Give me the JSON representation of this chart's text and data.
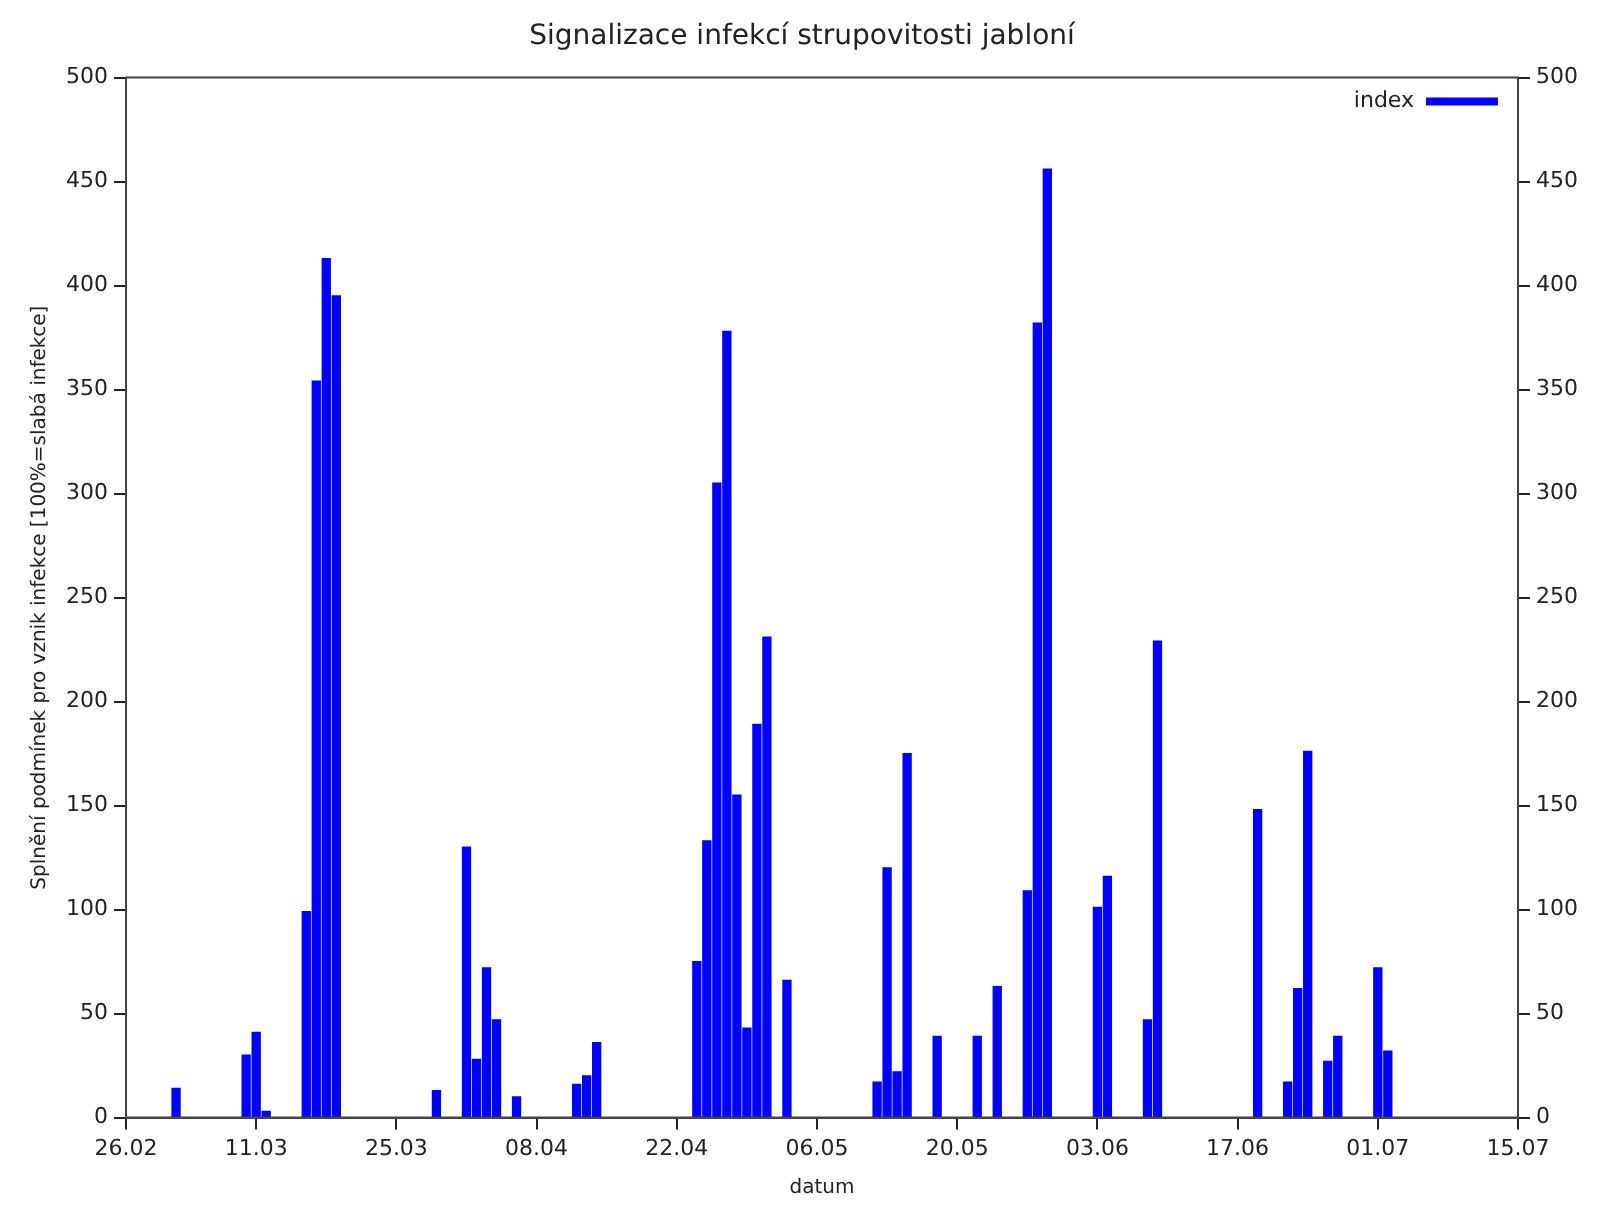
{
  "chart_data": {
    "type": "bar",
    "title": "Signalizace infekcí strupovitosti jabloní",
    "xlabel": "datum",
    "ylabel": "Splnění podmínek pro vznik infekce [100%=slabá infekce]",
    "x": [
      "--03-03",
      "--03-10",
      "--03-11",
      "--03-12",
      "--03-16",
      "--03-17",
      "--03-18",
      "--03-19",
      "--03-29",
      "--04-01",
      "--04-02",
      "--04-03",
      "--04-04",
      "--04-06",
      "--04-12",
      "--04-13",
      "--04-14",
      "--04-24",
      "--04-25",
      "--04-26",
      "--04-27",
      "--04-28",
      "--04-29",
      "--04-30",
      "--05-01",
      "--05-03",
      "--05-12",
      "--05-13",
      "--05-14",
      "--05-15",
      "--05-18",
      "--05-22",
      "--05-24",
      "--05-27",
      "--05-28",
      "--05-29",
      "--06-03",
      "--06-04",
      "--06-08",
      "--06-09",
      "--06-19",
      "--06-22",
      "--06-23",
      "--06-24",
      "--06-26",
      "--06-27",
      "--07-01",
      "--07-02"
    ],
    "series": [
      {
        "name": "index",
        "color": "#0000ff",
        "values": [
          14,
          30,
          41,
          3,
          99,
          354,
          413,
          395,
          13,
          130,
          28,
          72,
          47,
          10,
          16,
          20,
          36,
          75,
          133,
          305,
          378,
          155,
          43,
          189,
          231,
          66,
          17,
          120,
          22,
          175,
          39,
          39,
          63,
          109,
          382,
          456,
          101,
          116,
          47,
          229,
          148,
          17,
          62,
          176,
          27,
          39,
          72,
          32
        ]
      }
    ],
    "xlim": [
      "--02-26",
      "--07-15"
    ],
    "xticks": [
      {
        "value": "--02-26",
        "label": "26.02"
      },
      {
        "value": "--03-11",
        "label": "11.03"
      },
      {
        "value": "--03-25",
        "label": "25.03"
      },
      {
        "value": "--04-08",
        "label": "08.04"
      },
      {
        "value": "--04-22",
        "label": "22.04"
      },
      {
        "value": "--05-06",
        "label": "06.05"
      },
      {
        "value": "--05-20",
        "label": "20.05"
      },
      {
        "value": "--06-03",
        "label": "03.06"
      },
      {
        "value": "--06-17",
        "label": "17.06"
      },
      {
        "value": "--07-01",
        "label": "01.07"
      },
      {
        "value": "--07-15",
        "label": "15.07"
      }
    ],
    "ylim": [
      0,
      500
    ],
    "yticks": [
      0,
      50,
      100,
      150,
      200,
      250,
      300,
      350,
      400,
      450,
      500
    ],
    "y2lim": [
      0,
      500
    ],
    "y2ticks": [
      0,
      50,
      100,
      150,
      200,
      250,
      300,
      350,
      400,
      450,
      500
    ],
    "grid": false,
    "legend": "top right"
  }
}
